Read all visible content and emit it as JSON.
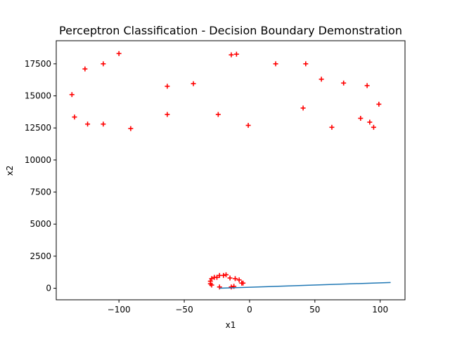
{
  "chart_data": {
    "type": "scatter",
    "title": "Perceptron Classification - Decision Boundary Demonstration",
    "xlabel": "x1",
    "ylabel": "x2",
    "xlim": [
      -148,
      119
    ],
    "ylim": [
      -900,
      19300
    ],
    "xticks": [
      -100,
      -50,
      0,
      50,
      100
    ],
    "xtick_labels": [
      "−100",
      "−50",
      "0",
      "50",
      "100"
    ],
    "yticks": [
      0,
      2500,
      5000,
      7500,
      10000,
      12500,
      15000,
      17500
    ],
    "ytick_labels": [
      "0",
      "2500",
      "5000",
      "7500",
      "10000",
      "12500",
      "15000",
      "17500"
    ],
    "grid": false,
    "colors": {
      "points": "#ff0000",
      "line": "#1f77b4"
    },
    "series": [
      {
        "marker": "plus",
        "points": [
          [
            -136,
            15100
          ],
          [
            -134,
            13350
          ],
          [
            -126,
            17100
          ],
          [
            -124,
            12800
          ],
          [
            -112,
            17500
          ],
          [
            -112,
            12800
          ],
          [
            -100,
            18300
          ],
          [
            -91,
            12450
          ],
          [
            -63,
            15750
          ],
          [
            -63,
            13550
          ],
          [
            -43,
            15950
          ],
          [
            -24,
            13550
          ],
          [
            -14,
            18200
          ],
          [
            -10,
            18250
          ],
          [
            -1,
            12700
          ],
          [
            20,
            17500
          ],
          [
            41,
            14050
          ],
          [
            43,
            17500
          ],
          [
            55,
            16300
          ],
          [
            63,
            12550
          ],
          [
            72,
            16000
          ],
          [
            85,
            13250
          ],
          [
            90,
            15800
          ],
          [
            92,
            12950
          ],
          [
            95,
            12550
          ],
          [
            99,
            14350
          ],
          [
            -30,
            550
          ],
          [
            -30,
            350
          ],
          [
            -29,
            750
          ],
          [
            -29,
            250
          ],
          [
            -27,
            850
          ],
          [
            -25,
            850
          ],
          [
            -23,
            1000
          ],
          [
            -20,
            1000
          ],
          [
            -18,
            1050
          ],
          [
            -15,
            800
          ],
          [
            -14,
            100
          ],
          [
            -12,
            150
          ],
          [
            -11,
            750
          ],
          [
            -8,
            650
          ],
          [
            -6,
            400
          ],
          [
            -5,
            400
          ],
          [
            -23,
            100
          ]
        ]
      },
      {
        "marker": "line",
        "points": [
          [
            -23,
            0
          ],
          [
            108,
            450
          ]
        ]
      }
    ]
  }
}
